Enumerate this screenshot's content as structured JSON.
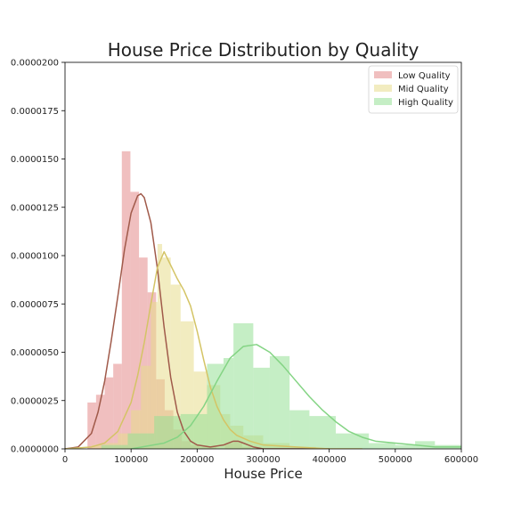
{
  "chart_data": {
    "type": "histogram",
    "title": "House Price Distribution by Quality",
    "xlabel": "House Price",
    "ylabel": "",
    "xlim": [
      0,
      600000
    ],
    "ylim": [
      0,
      2e-05
    ],
    "x_ticks": [
      0,
      100000,
      200000,
      300000,
      400000,
      500000,
      600000
    ],
    "x_tick_labels": [
      "0",
      "100000",
      "200000",
      "300000",
      "400000",
      "500000",
      "600000"
    ],
    "y_ticks": [
      0,
      2.5e-06,
      5e-06,
      7.5e-06,
      1e-05,
      1.25e-05,
      1.5e-05,
      1.75e-05,
      2e-05
    ],
    "y_tick_labels": [
      "0.0000000",
      "0.0000025",
      "0.0000050",
      "0.0000075",
      "0.0000100",
      "0.0000125",
      "0.0000150",
      "0.0000175",
      "0.0000200"
    ],
    "grid": false,
    "legend_position": "top-right",
    "series": [
      {
        "name": "Low Quality",
        "color": "#e48a8a",
        "line_color": "#a05a4a",
        "bins": [
          {
            "x0": 34000,
            "x1": 47000,
            "height": 2.4e-06
          },
          {
            "x0": 47000,
            "x1": 60000,
            "height": 2.8e-06
          },
          {
            "x0": 60000,
            "x1": 73000,
            "height": 3.7e-06
          },
          {
            "x0": 73000,
            "x1": 86000,
            "height": 4.4e-06
          },
          {
            "x0": 86000,
            "x1": 99000,
            "height": 1.54e-05
          },
          {
            "x0": 99000,
            "x1": 112000,
            "height": 1.33e-05
          },
          {
            "x0": 112000,
            "x1": 125000,
            "height": 9.9e-06
          },
          {
            "x0": 125000,
            "x1": 138000,
            "height": 8.1e-06
          },
          {
            "x0": 138000,
            "x1": 151000,
            "height": 3.6e-06
          },
          {
            "x0": 151000,
            "x1": 164000,
            "height": 2e-06
          },
          {
            "x0": 164000,
            "x1": 177000,
            "height": 1e-06
          },
          {
            "x0": 177000,
            "x1": 190000,
            "height": 4e-07
          },
          {
            "x0": 190000,
            "x1": 203000,
            "height": 2e-07
          },
          {
            "x0": 203000,
            "x1": 216000,
            "height": 1e-07
          },
          {
            "x0": 216000,
            "x1": 229000,
            "height": 1e-07
          },
          {
            "x0": 229000,
            "x1": 242000,
            "height": 0
          },
          {
            "x0": 242000,
            "x1": 255000,
            "height": 3e-07
          },
          {
            "x0": 255000,
            "x1": 268000,
            "height": 4e-07
          },
          {
            "x0": 268000,
            "x1": 281000,
            "height": 1e-07
          }
        ],
        "kde": {
          "x": [
            0,
            20000,
            40000,
            50000,
            60000,
            70000,
            80000,
            90000,
            100000,
            110000,
            115000,
            120000,
            130000,
            140000,
            150000,
            160000,
            170000,
            180000,
            190000,
            200000,
            220000,
            240000,
            255000,
            262000,
            270000,
            285000,
            300000,
            350000,
            400000
          ],
          "y": [
            0,
            1e-07,
            8e-07,
            1.9e-06,
            3.5e-06,
            5.6e-06,
            7.9e-06,
            1.03e-05,
            1.22e-05,
            1.31e-05,
            1.32e-05,
            1.3e-05,
            1.17e-05,
            9.3e-06,
            6.3e-06,
            3.7e-06,
            1.9e-06,
            9e-07,
            4e-07,
            2e-07,
            1e-07,
            2e-07,
            4e-07,
            4e-07,
            3e-07,
            1e-07,
            0,
            0,
            0
          ]
        }
      },
      {
        "name": "Mid Quality",
        "color": "#e8dc8c",
        "line_color": "#d4c465",
        "bins": [
          {
            "x0": 40000,
            "x1": 60000,
            "height": 2e-07
          },
          {
            "x0": 60000,
            "x1": 80000,
            "height": 3e-07
          },
          {
            "x0": 80000,
            "x1": 100000,
            "height": 8e-07
          },
          {
            "x0": 100000,
            "x1": 115000,
            "height": 2e-06
          },
          {
            "x0": 115000,
            "x1": 130000,
            "height": 4.3e-06
          },
          {
            "x0": 130000,
            "x1": 140000,
            "height": 7.6e-06
          },
          {
            "x0": 140000,
            "x1": 147000,
            "height": 1.06e-05
          },
          {
            "x0": 147000,
            "x1": 160000,
            "height": 9.9e-06
          },
          {
            "x0": 160000,
            "x1": 175000,
            "height": 8.5e-06
          },
          {
            "x0": 175000,
            "x1": 195000,
            "height": 6.6e-06
          },
          {
            "x0": 195000,
            "x1": 215000,
            "height": 4e-06
          },
          {
            "x0": 215000,
            "x1": 235000,
            "height": 3.3e-06
          },
          {
            "x0": 235000,
            "x1": 250000,
            "height": 1.8e-06
          },
          {
            "x0": 250000,
            "x1": 270000,
            "height": 1.2e-06
          },
          {
            "x0": 270000,
            "x1": 300000,
            "height": 7e-07
          },
          {
            "x0": 300000,
            "x1": 340000,
            "height": 3e-07
          },
          {
            "x0": 340000,
            "x1": 380000,
            "height": 1e-07
          }
        ],
        "kde": {
          "x": [
            0,
            40000,
            60000,
            80000,
            100000,
            110000,
            120000,
            130000,
            140000,
            150000,
            160000,
            170000,
            180000,
            190000,
            200000,
            210000,
            220000,
            230000,
            240000,
            250000,
            260000,
            280000,
            300000,
            350000,
            400000,
            450000
          ],
          "y": [
            0,
            1e-07,
            3e-07,
            9e-07,
            2.4e-06,
            3.8e-06,
            5.5e-06,
            7.5e-06,
            9.4e-06,
            1.02e-05,
            9.5e-06,
            8.8e-06,
            8.2e-06,
            7.4e-06,
            6.1e-06,
            4.6e-06,
            3.2e-06,
            2.2e-06,
            1.5e-06,
            1e-06,
            7e-07,
            4e-07,
            2e-07,
            1e-07,
            0,
            0
          ]
        }
      },
      {
        "name": "High Quality",
        "color": "#95e095",
        "line_color": "#84d484",
        "bins": [
          {
            "x0": 55000,
            "x1": 95000,
            "height": 2e-07
          },
          {
            "x0": 95000,
            "x1": 135000,
            "height": 8e-07
          },
          {
            "x0": 135000,
            "x1": 175000,
            "height": 1.7e-06
          },
          {
            "x0": 175000,
            "x1": 215000,
            "height": 1.8e-06
          },
          {
            "x0": 215000,
            "x1": 240000,
            "height": 4.4e-06
          },
          {
            "x0": 240000,
            "x1": 255000,
            "height": 4.7e-06
          },
          {
            "x0": 255000,
            "x1": 285000,
            "height": 6.5e-06
          },
          {
            "x0": 285000,
            "x1": 310000,
            "height": 4.2e-06
          },
          {
            "x0": 310000,
            "x1": 340000,
            "height": 4.8e-06
          },
          {
            "x0": 340000,
            "x1": 370000,
            "height": 2e-06
          },
          {
            "x0": 370000,
            "x1": 410000,
            "height": 1.7e-06
          },
          {
            "x0": 410000,
            "x1": 460000,
            "height": 8e-07
          },
          {
            "x0": 460000,
            "x1": 500000,
            "height": 3e-07
          },
          {
            "x0": 500000,
            "x1": 530000,
            "height": 2e-07
          },
          {
            "x0": 530000,
            "x1": 560000,
            "height": 4e-07
          },
          {
            "x0": 560000,
            "x1": 600000,
            "height": 2e-07
          }
        ],
        "kde": {
          "x": [
            100000,
            150000,
            170000,
            190000,
            210000,
            230000,
            250000,
            270000,
            290000,
            310000,
            330000,
            350000,
            370000,
            390000,
            410000,
            430000,
            450000,
            470000,
            500000,
            530000,
            560000,
            600000
          ],
          "y": [
            0,
            3e-07,
            6e-07,
            1.2e-06,
            2.2e-06,
            3.5e-06,
            4.7e-06,
            5.3e-06,
            5.4e-06,
            5e-06,
            4.3e-06,
            3.5e-06,
            2.7e-06,
            2e-06,
            1.4e-06,
            9e-07,
            6e-07,
            4e-07,
            3e-07,
            2e-07,
            1e-07,
            1e-07
          ]
        }
      }
    ]
  }
}
